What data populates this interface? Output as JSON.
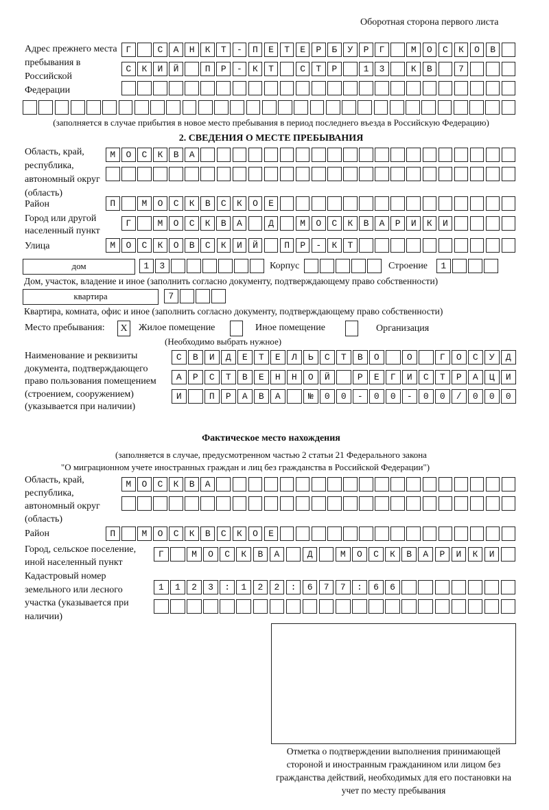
{
  "header": "Оборотная сторона первого листа",
  "prev_address": {
    "label": "Адрес прежнего места пребывания в Российской Федерации",
    "rows": [
      "Г САНКТ-ПЕТЕРБУРГ МОСКОВ",
      "СКИЙ ПР-КТ СТР 13 КВ 7",
      "",
      ""
    ],
    "note": "(заполняется в случае прибытия в новое место пребывания в период последнего въезда в Российскую Федерацию)"
  },
  "section2": {
    "title": "2. СВЕДЕНИЯ О МЕСТЕ ПРЕБЫВАНИЯ",
    "region_label": "Область, край, республика, автономный округ (область)",
    "region_rows": [
      "МОСКВА",
      ""
    ],
    "district_label": "Район",
    "district": "П МОСКВСКОЕ",
    "city_label": "Город или другой населенный пункт",
    "city": "Г МОСКВА Д МОСКВАРИКИ",
    "street_label": "Улица",
    "street": "МОСКОВСКИЙ ПР-КТ",
    "house_type": "дом",
    "house_number": "13",
    "korpus_label": "Корпус",
    "korpus": "",
    "stroenie_label": "Строение",
    "stroenie": "1",
    "house_note": "Дом, участок, владение и иное (заполнить согласно документу, подтверждающему право собственности)",
    "flat_type": "квартира",
    "flat_number": "7",
    "flat_note": "Квартира, комната, офис и иное (заполнить согласно документу, подтверждающему право собственности)",
    "stay_place_label": "Место пребывания:",
    "options": [
      {
        "label": "Жилое помещение",
        "mark": "X",
        "checked": true
      },
      {
        "label": "Иное помещение",
        "mark": "",
        "checked": false
      },
      {
        "label": "Организация",
        "mark": "",
        "checked": false
      }
    ],
    "choose_note": "(Необходимо выбрать нужное)",
    "doc_label": "Наименование и реквизиты документа, подтверждающего право пользования помещением (строением, сооружением) (указывается при наличии)",
    "doc_rows": [
      "СВИДЕТЕЛЬСТВО О ГОСУД",
      "АРСТВЕННОЙ РЕГИСТРАЦИ",
      "И ПРАВА №00-00-00/000"
    ]
  },
  "actual": {
    "title": "Фактическое место нахождения",
    "note1": "(заполняется в случае, предусмотренном частью 2 статьи 21 Федерального закона",
    "note2": "\"О миграционном учете иностранных граждан и лиц без гражданства в Российской Федерации\")",
    "region_label": "Область, край, республика, автономный округ (область)",
    "region_rows": [
      "МОСКВА",
      ""
    ],
    "district_label": "Район",
    "district": "П МОСКВСКОЕ",
    "city_label": "Город, сельское поселение, иной населенный пункт",
    "city": "Г МОСКВА Д МОСКВАРИКИ",
    "cadastral_label": "Кадастровый номер земельного или лесного участка (указывается при наличии)",
    "cadastral_rows": [
      "1123:122:677:66",
      ""
    ]
  },
  "confirmation_caption": "Отметка о подтверждении выполнения принимающей стороной и иностранным гражданином или лицом без гражданства действий, необходимых для его постановки на учет по месту пребывания"
}
